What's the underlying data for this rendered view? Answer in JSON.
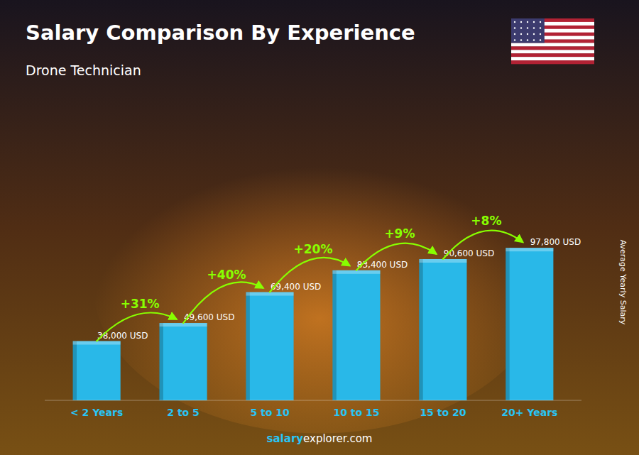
{
  "chart_data": {
    "type": "bar",
    "title": "Salary Comparison By Experience",
    "subtitle": "Drone Technician",
    "ylabel": "Average Yearly Salary",
    "footer": [
      "salary",
      "explorer.com"
    ],
    "categories": [
      "< 2 Years",
      "2 to 5",
      "5 to 10",
      "10 to 15",
      "15 to 20",
      "20+ Years"
    ],
    "values": [
      38000,
      49600,
      69400,
      83400,
      90600,
      97800
    ],
    "value_labels": [
      "38,000 USD",
      "49,600 USD",
      "69,400 USD",
      "83,400 USD",
      "90,600 USD",
      "97,800 USD"
    ],
    "data_labels": true,
    "annotations": [
      "+31%",
      "+40%",
      "+20%",
      "+9%",
      "+8%"
    ],
    "color": "#29b8e8",
    "ylim": [
      0,
      151590
    ],
    "tick_labels": "x",
    "grid": false
  }
}
